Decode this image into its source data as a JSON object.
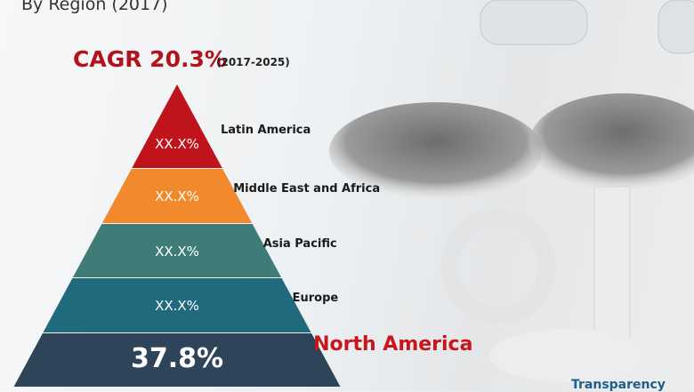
{
  "subtitle": "By Region (2017)",
  "cagr": {
    "label": "CAGR 20.3%",
    "period": "(2017-2025)"
  },
  "logo_text": "Transparency",
  "chart_data": {
    "type": "pyramid",
    "title": "",
    "levels": [
      {
        "region": "Latin America",
        "value_label": "XX.X%",
        "color": "#c0141c",
        "highlight": false
      },
      {
        "region": "Middle East and Africa",
        "value_label": "XX.X%",
        "color": "#f08a2c",
        "highlight": false
      },
      {
        "region": "Asia Pacific",
        "value_label": "XX.X%",
        "color": "#3f7c78",
        "highlight": false
      },
      {
        "region": "Europe",
        "value_label": "XX.X%",
        "color": "#1f6a7c",
        "highlight": false
      },
      {
        "region": "North America",
        "value_label": "37.8%",
        "value": 37.8,
        "color": "#2d4459",
        "highlight": true
      }
    ]
  }
}
